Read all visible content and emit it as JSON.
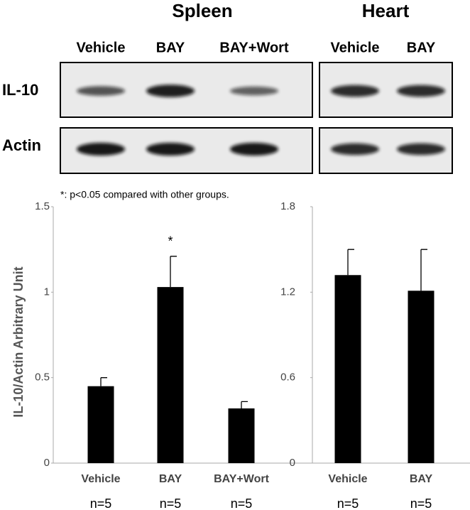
{
  "blot": {
    "panels": [
      {
        "title": "Spleen",
        "lanes": [
          "Vehicle",
          "BAY",
          "BAY+Wort"
        ]
      },
      {
        "title": "Heart",
        "lanes": [
          "Vehicle",
          "BAY"
        ]
      }
    ],
    "rows": [
      "IL-10",
      "Actin"
    ]
  },
  "chart_data": [
    {
      "type": "bar",
      "y_label": "IL-10/Actin  Arbitrary Unit",
      "note": "*: p<0.05 compared with other groups.",
      "categories": [
        "Vehicle",
        "BAY",
        "BAY+Wort"
      ],
      "values": [
        0.45,
        1.03,
        0.32
      ],
      "errors": [
        0.05,
        0.18,
        0.04
      ],
      "significance": [
        null,
        "*",
        null
      ],
      "n_labels": [
        "n=5",
        "n=5",
        "n=5"
      ],
      "color": "#000000",
      "ylim": [
        0,
        1.5
      ],
      "yticks": [
        0,
        0.5,
        1,
        1.5
      ]
    },
    {
      "type": "bar",
      "categories": [
        "Vehicle",
        "BAY"
      ],
      "values": [
        1.32,
        1.21
      ],
      "errors": [
        0.18,
        0.29
      ],
      "n_labels": [
        "n=5",
        "n=5"
      ],
      "color": "#000000",
      "ylim": [
        0,
        1.8
      ],
      "yticks": [
        0,
        0.6,
        1.2,
        1.8
      ]
    }
  ]
}
